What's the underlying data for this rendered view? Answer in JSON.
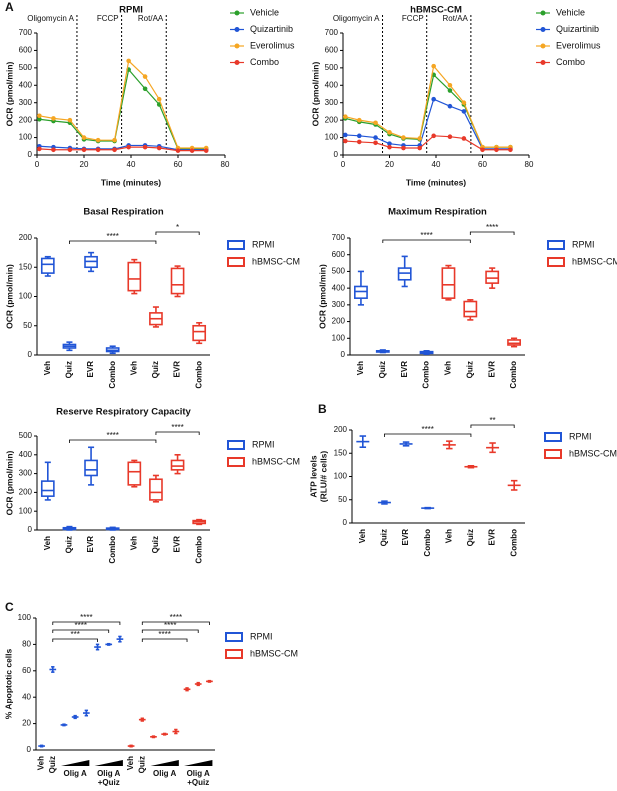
{
  "chart_data": [
    {
      "type": "line",
      "panel_label": "A",
      "title": "RPMI",
      "xlabel": "Time (minutes)",
      "ylabel": "OCR (pmol/min)",
      "x": [
        1,
        7,
        14,
        20,
        26,
        33,
        39,
        46,
        52,
        60,
        66,
        72
      ],
      "xlim": [
        0,
        80
      ],
      "xticks": [
        0,
        20,
        40,
        60,
        80
      ],
      "ylim": [
        0,
        700
      ],
      "yticks": [
        0,
        100,
        200,
        300,
        400,
        500,
        600,
        700
      ],
      "annotations": [
        {
          "x": 17,
          "label": "Oligomycin A"
        },
        {
          "x": 36,
          "label": "FCCP"
        },
        {
          "x": 55,
          "label": "Rot/AA"
        }
      ],
      "series": [
        {
          "name": "Vehicle",
          "color": "#2ca02c",
          "values": [
            205,
            195,
            185,
            90,
            80,
            80,
            490,
            380,
            290,
            35,
            35,
            35
          ]
        },
        {
          "name": "Quizartinib",
          "color": "#2155d6",
          "values": [
            50,
            45,
            40,
            35,
            35,
            35,
            55,
            55,
            50,
            30,
            30,
            30
          ]
        },
        {
          "name": "Everolimus",
          "color": "#f5a623",
          "values": [
            225,
            210,
            200,
            100,
            85,
            85,
            540,
            450,
            320,
            40,
            40,
            40
          ]
        },
        {
          "name": "Combo",
          "color": "#e8392a",
          "values": [
            35,
            30,
            30,
            30,
            30,
            30,
            45,
            45,
            40,
            25,
            25,
            25
          ]
        }
      ]
    },
    {
      "type": "line",
      "title": "hBMSC-CM",
      "xlabel": "Time (minutes)",
      "ylabel": "OCR (pmol/min)",
      "x": [
        1,
        7,
        14,
        20,
        26,
        33,
        39,
        46,
        52,
        60,
        66,
        72
      ],
      "xlim": [
        0,
        80
      ],
      "xticks": [
        0,
        20,
        40,
        60,
        80
      ],
      "ylim": [
        0,
        700
      ],
      "yticks": [
        0,
        100,
        200,
        300,
        400,
        500,
        600,
        700
      ],
      "annotations": [
        {
          "x": 17,
          "label": "Oligomycin A"
        },
        {
          "x": 36,
          "label": "FCCP"
        },
        {
          "x": 55,
          "label": "Rot/AA"
        }
      ],
      "series": [
        {
          "name": "Vehicle",
          "color": "#2ca02c",
          "values": [
            210,
            190,
            175,
            120,
            95,
            90,
            460,
            370,
            290,
            45,
            45,
            45
          ]
        },
        {
          "name": "Quizartinib",
          "color": "#2155d6",
          "values": [
            115,
            110,
            100,
            65,
            55,
            55,
            320,
            280,
            250,
            35,
            35,
            35
          ]
        },
        {
          "name": "Everolimus",
          "color": "#f5a623",
          "values": [
            220,
            200,
            185,
            130,
            100,
            95,
            510,
            400,
            300,
            45,
            45,
            45
          ]
        },
        {
          "name": "Combo",
          "color": "#e8392a",
          "values": [
            80,
            75,
            70,
            45,
            40,
            40,
            110,
            105,
            95,
            30,
            30,
            30
          ]
        }
      ]
    },
    {
      "type": "box",
      "title": "Basal Respiration",
      "ylabel": "OCR (pmol/min)",
      "categories": [
        "Veh",
        "Quiz",
        "EVR",
        "Combo",
        "Veh",
        "Quiz",
        "EVR",
        "Combo"
      ],
      "ylim": [
        0,
        200
      ],
      "yticks": [
        0,
        50,
        100,
        150,
        200
      ],
      "comparisons": [
        {
          "categories": [
            1,
            5
          ],
          "label": "****"
        },
        {
          "categories": [
            5,
            7
          ],
          "label": "*"
        }
      ],
      "series": [
        {
          "name": "RPMI",
          "color": "#2155d6",
          "boxes": [
            {
              "min": 135,
              "q1": 140,
              "median": 155,
              "q3": 165,
              "max": 168
            },
            {
              "min": 8,
              "q1": 12,
              "median": 15,
              "q3": 18,
              "max": 22
            },
            {
              "min": 143,
              "q1": 150,
              "median": 160,
              "q3": 168,
              "max": 175
            },
            {
              "min": 3,
              "q1": 6,
              "median": 8,
              "q3": 12,
              "max": 15
            },
            null,
            null,
            null,
            null
          ]
        },
        {
          "name": "hBMSC-CM",
          "color": "#e8392a",
          "boxes": [
            null,
            null,
            null,
            null,
            {
              "min": 105,
              "q1": 110,
              "median": 130,
              "q3": 158,
              "max": 163
            },
            {
              "min": 48,
              "q1": 52,
              "median": 62,
              "q3": 72,
              "max": 82
            },
            {
              "min": 100,
              "q1": 105,
              "median": 120,
              "q3": 148,
              "max": 152
            },
            {
              "min": 20,
              "q1": 25,
              "median": 40,
              "q3": 50,
              "max": 55
            }
          ]
        }
      ]
    },
    {
      "type": "box",
      "title": "Maximum Respiration",
      "ylabel": "OCR (pmol/min)",
      "categories": [
        "Veh",
        "Quiz",
        "EVR",
        "Combo",
        "Veh",
        "Quiz",
        "EVR",
        "Combo"
      ],
      "ylim": [
        0,
        700
      ],
      "yticks": [
        0,
        100,
        200,
        300,
        400,
        500,
        600,
        700
      ],
      "comparisons": [
        {
          "categories": [
            1,
            5
          ],
          "label": "****"
        },
        {
          "categories": [
            5,
            7
          ],
          "label": "****"
        }
      ],
      "series": [
        {
          "name": "RPMI",
          "color": "#2155d6",
          "boxes": [
            {
              "min": 300,
              "q1": 340,
              "median": 380,
              "q3": 410,
              "max": 500
            },
            {
              "min": 15,
              "q1": 18,
              "median": 22,
              "q3": 25,
              "max": 30
            },
            {
              "min": 410,
              "q1": 450,
              "median": 490,
              "q3": 520,
              "max": 590
            },
            {
              "min": 5,
              "q1": 10,
              "median": 15,
              "q3": 20,
              "max": 25
            },
            null,
            null,
            null,
            null
          ]
        },
        {
          "name": "hBMSC-CM",
          "color": "#e8392a",
          "boxes": [
            null,
            null,
            null,
            null,
            {
              "min": 330,
              "q1": 340,
              "median": 420,
              "q3": 520,
              "max": 535
            },
            {
              "min": 210,
              "q1": 230,
              "median": 260,
              "q3": 320,
              "max": 330
            },
            {
              "min": 400,
              "q1": 430,
              "median": 460,
              "q3": 500,
              "max": 520
            },
            {
              "min": 50,
              "q1": 60,
              "median": 70,
              "q3": 90,
              "max": 100
            }
          ]
        }
      ]
    },
    {
      "type": "box",
      "title": "Reserve Respiratory Capacity",
      "ylabel": "OCR (pmol/min)",
      "categories": [
        "Veh",
        "Quiz",
        "EVR",
        "Combo",
        "Veh",
        "Quiz",
        "EVR",
        "Combo"
      ],
      "ylim": [
        0,
        500
      ],
      "yticks": [
        0,
        100,
        200,
        300,
        400,
        500
      ],
      "comparisons": [
        {
          "categories": [
            1,
            5
          ],
          "label": "****"
        },
        {
          "categories": [
            5,
            7
          ],
          "label": "****"
        }
      ],
      "series": [
        {
          "name": "RPMI",
          "color": "#2155d6",
          "boxes": [
            {
              "min": 160,
              "q1": 180,
              "median": 210,
              "q3": 260,
              "max": 360
            },
            {
              "min": 0,
              "q1": 3,
              "median": 8,
              "q3": 12,
              "max": 18
            },
            {
              "min": 240,
              "q1": 290,
              "median": 320,
              "q3": 370,
              "max": 440
            },
            {
              "min": 0,
              "q1": 3,
              "median": 6,
              "q3": 10,
              "max": 14
            },
            null,
            null,
            null,
            null
          ]
        },
        {
          "name": "hBMSC-CM",
          "color": "#e8392a",
          "boxes": [
            null,
            null,
            null,
            null,
            {
              "min": 230,
              "q1": 240,
              "median": 310,
              "q3": 360,
              "max": 370
            },
            {
              "min": 150,
              "q1": 160,
              "median": 200,
              "q3": 270,
              "max": 290
            },
            {
              "min": 300,
              "q1": 320,
              "median": 340,
              "q3": 370,
              "max": 400
            },
            {
              "min": 30,
              "q1": 35,
              "median": 45,
              "q3": 50,
              "max": 55
            }
          ]
        }
      ]
    },
    {
      "type": "dot",
      "panel_label": "B",
      "ylabel": [
        "ATP levels",
        "(RLU/# cells)"
      ],
      "categories": [
        "Veh",
        "Quiz",
        "EVR",
        "Combo",
        "Veh",
        "Quiz",
        "EVR",
        "Combo"
      ],
      "ylim": [
        0,
        200
      ],
      "yticks": [
        0,
        50,
        100,
        150,
        200
      ],
      "comparisons": [
        {
          "categories": [
            1,
            5
          ],
          "label": "****"
        },
        {
          "categories": [
            5,
            7
          ],
          "label": "**"
        }
      ],
      "series": [
        {
          "name": "RPMI",
          "color": "#2155d6",
          "values": [
            175,
            44,
            170,
            32,
            null,
            null,
            null,
            null
          ],
          "errors": [
            12,
            3,
            4,
            1,
            null,
            null,
            null,
            null
          ]
        },
        {
          "name": "hBMSC-CM",
          "color": "#e8392a",
          "values": [
            null,
            null,
            null,
            null,
            168,
            121,
            162,
            81
          ],
          "errors": [
            null,
            null,
            null,
            null,
            8,
            2,
            10,
            10
          ]
        }
      ]
    },
    {
      "type": "dot",
      "panel_label": "C",
      "ylabel": "% Apoptotic cells",
      "categories": [
        "Veh",
        "Quiz",
        null,
        null,
        null,
        null,
        null,
        null,
        "Veh",
        "Quiz",
        null,
        null,
        null,
        null,
        null,
        null
      ],
      "dose_groups": [
        {
          "label": [
            "Olig A"
          ],
          "categories": [
            2,
            4
          ]
        },
        {
          "label": [
            "Olig A",
            "+Quiz"
          ],
          "categories": [
            5,
            7
          ]
        },
        {
          "label": [
            "Olig A"
          ],
          "categories": [
            10,
            12
          ]
        },
        {
          "label": [
            "Olig A",
            "+Quiz"
          ],
          "categories": [
            13,
            15
          ]
        }
      ],
      "ylim": [
        0,
        100
      ],
      "yticks": [
        0,
        20,
        40,
        60,
        80,
        100
      ],
      "comparisons": [
        {
          "categories": [
            1,
            7
          ],
          "label": "****"
        },
        {
          "categories": [
            1,
            6
          ],
          "label": "****"
        },
        {
          "categories": [
            1,
            5
          ],
          "label": "***"
        },
        {
          "categories": [
            9,
            15
          ],
          "label": "****"
        },
        {
          "categories": [
            9,
            14
          ],
          "label": "****"
        },
        {
          "categories": [
            9,
            13
          ],
          "label": "****"
        }
      ],
      "series": [
        {
          "name": "RPMI",
          "color": "#2155d6",
          "values": [
            3,
            61,
            19,
            25,
            28,
            78,
            80,
            84,
            null,
            null,
            null,
            null,
            null,
            null,
            null,
            null
          ],
          "errors": [
            0.5,
            2,
            0.5,
            1,
            2,
            2,
            0.5,
            2,
            null,
            null,
            null,
            null,
            null,
            null,
            null,
            null
          ]
        },
        {
          "name": "hBMSC-CM",
          "color": "#e8392a",
          "values": [
            null,
            null,
            null,
            null,
            null,
            null,
            null,
            null,
            3,
            23,
            10,
            12,
            14,
            46,
            50,
            52
          ],
          "errors": [
            null,
            null,
            null,
            null,
            null,
            null,
            null,
            null,
            0.5,
            1,
            0.5,
            0.5,
            1.5,
            1,
            1,
            0.5
          ]
        }
      ]
    }
  ]
}
